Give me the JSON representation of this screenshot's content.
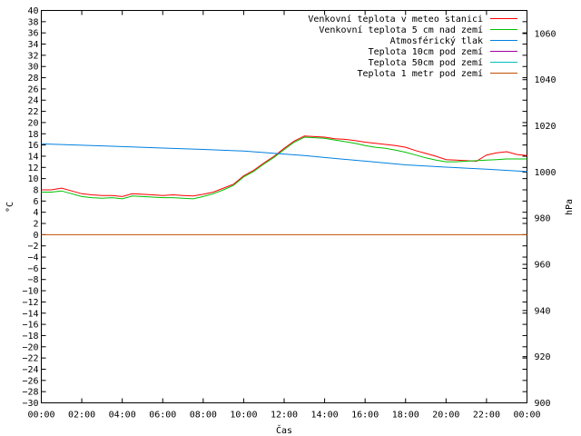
{
  "chart_data": {
    "type": "line",
    "xlabel": "Čas",
    "ylabel_left": "°C",
    "ylabel_right": "hPa",
    "ylim_left": [
      -30,
      40
    ],
    "ylim_right": [
      900,
      1070
    ],
    "xlim_hours": [
      0,
      24
    ],
    "x_tick_labels": [
      "00:00",
      "02:00",
      "04:00",
      "06:00",
      "08:00",
      "10:00",
      "12:00",
      "14:00",
      "16:00",
      "18:00",
      "20:00",
      "22:00",
      "00:00"
    ],
    "y_left_ticks": [
      40,
      38,
      36,
      34,
      32,
      30,
      28,
      26,
      24,
      22,
      20,
      18,
      16,
      14,
      12,
      10,
      8,
      6,
      4,
      2,
      0,
      -2,
      -4,
      -6,
      -8,
      -10,
      -12,
      -14,
      -16,
      -18,
      -20,
      -22,
      -24,
      -26,
      -28,
      -30
    ],
    "y_right_ticks": [
      1060,
      1040,
      1020,
      1000,
      980,
      960,
      940,
      920,
      900
    ],
    "grid": false,
    "legend_position": "top-right",
    "series": [
      {
        "name": "Venkovní teplota v meteo stanici",
        "color": "#ff0000",
        "axis": "left",
        "x": [
          0,
          0.5,
          1,
          1.5,
          2,
          2.5,
          3,
          3.5,
          4,
          4.5,
          5,
          5.5,
          6,
          6.5,
          7,
          7.5,
          8,
          8.5,
          9,
          9.5,
          10,
          10.5,
          11,
          11.5,
          12,
          12.5,
          13,
          13.5,
          14,
          14.5,
          15,
          15.5,
          16,
          16.5,
          17,
          17.5,
          18,
          18.5,
          19,
          19.5,
          20,
          20.5,
          21,
          21.5,
          22,
          22.5,
          23,
          23.5,
          24
        ],
        "values": [
          8,
          8,
          8.3,
          7.8,
          7.3,
          7.1,
          7,
          7,
          6.8,
          7.3,
          7.2,
          7.1,
          7,
          7.1,
          7,
          6.9,
          7.2,
          7.6,
          8.3,
          9,
          10.5,
          11.5,
          12.8,
          14,
          15.4,
          16.7,
          17.6,
          17.5,
          17.4,
          17.1,
          17,
          16.8,
          16.5,
          16.3,
          16.1,
          15.9,
          15.6,
          15,
          14.5,
          14,
          13.4,
          13.3,
          13.2,
          13.1,
          14.2,
          14.6,
          14.8,
          14.3,
          14.1
        ]
      },
      {
        "name": "Venkovní teplota 5 cm nad zemí",
        "color": "#00c000",
        "axis": "left",
        "x": [
          0,
          0.5,
          1,
          1.5,
          2,
          2.5,
          3,
          3.5,
          4,
          4.5,
          5,
          5.5,
          6,
          6.5,
          7,
          7.5,
          8,
          8.5,
          9,
          9.5,
          10,
          10.5,
          11,
          11.5,
          12,
          12.5,
          13,
          13.5,
          14,
          14.5,
          15,
          15.5,
          16,
          16.5,
          17,
          17.5,
          18,
          18.5,
          19,
          19.5,
          20,
          20.5,
          21,
          21.5,
          22,
          22.5,
          23,
          23.5,
          24
        ],
        "values": [
          7.6,
          7.6,
          7.8,
          7.3,
          6.8,
          6.6,
          6.5,
          6.6,
          6.4,
          6.9,
          6.8,
          6.7,
          6.6,
          6.6,
          6.5,
          6.4,
          6.8,
          7.3,
          8,
          8.8,
          10.3,
          11.3,
          12.6,
          13.8,
          15.2,
          16.5,
          17.4,
          17.3,
          17.2,
          16.9,
          16.6,
          16.3,
          15.9,
          15.6,
          15.4,
          15.1,
          14.7,
          14.2,
          13.7,
          13.3,
          13,
          13,
          13.1,
          13.2,
          13.3,
          13.4,
          13.5,
          13.5,
          13.5
        ]
      },
      {
        "name": "Atmosférický tlak",
        "color": "#0080e0",
        "axis": "right",
        "x": [
          0,
          2,
          4,
          6,
          8,
          10,
          12,
          13,
          14,
          16,
          18,
          20,
          22,
          24
        ],
        "values": [
          1012.2,
          1011.6,
          1011,
          1010.4,
          1009.8,
          1009.1,
          1007.8,
          1007.1,
          1006.3,
          1004.7,
          1003.1,
          1002.1,
          1001.2,
          1000.2
        ]
      },
      {
        "name": "Teplota 10cm pod zemí",
        "color": "#a000a0",
        "axis": "left",
        "x": [],
        "values": []
      },
      {
        "name": "Teplota 50cm pod zemí",
        "color": "#00c0c0",
        "axis": "left",
        "x": [],
        "values": []
      },
      {
        "name": "Teplota 1 metr pod zemí",
        "color": "#c05000",
        "axis": "left",
        "x": [
          0,
          24
        ],
        "values": [
          0,
          0
        ]
      }
    ]
  }
}
